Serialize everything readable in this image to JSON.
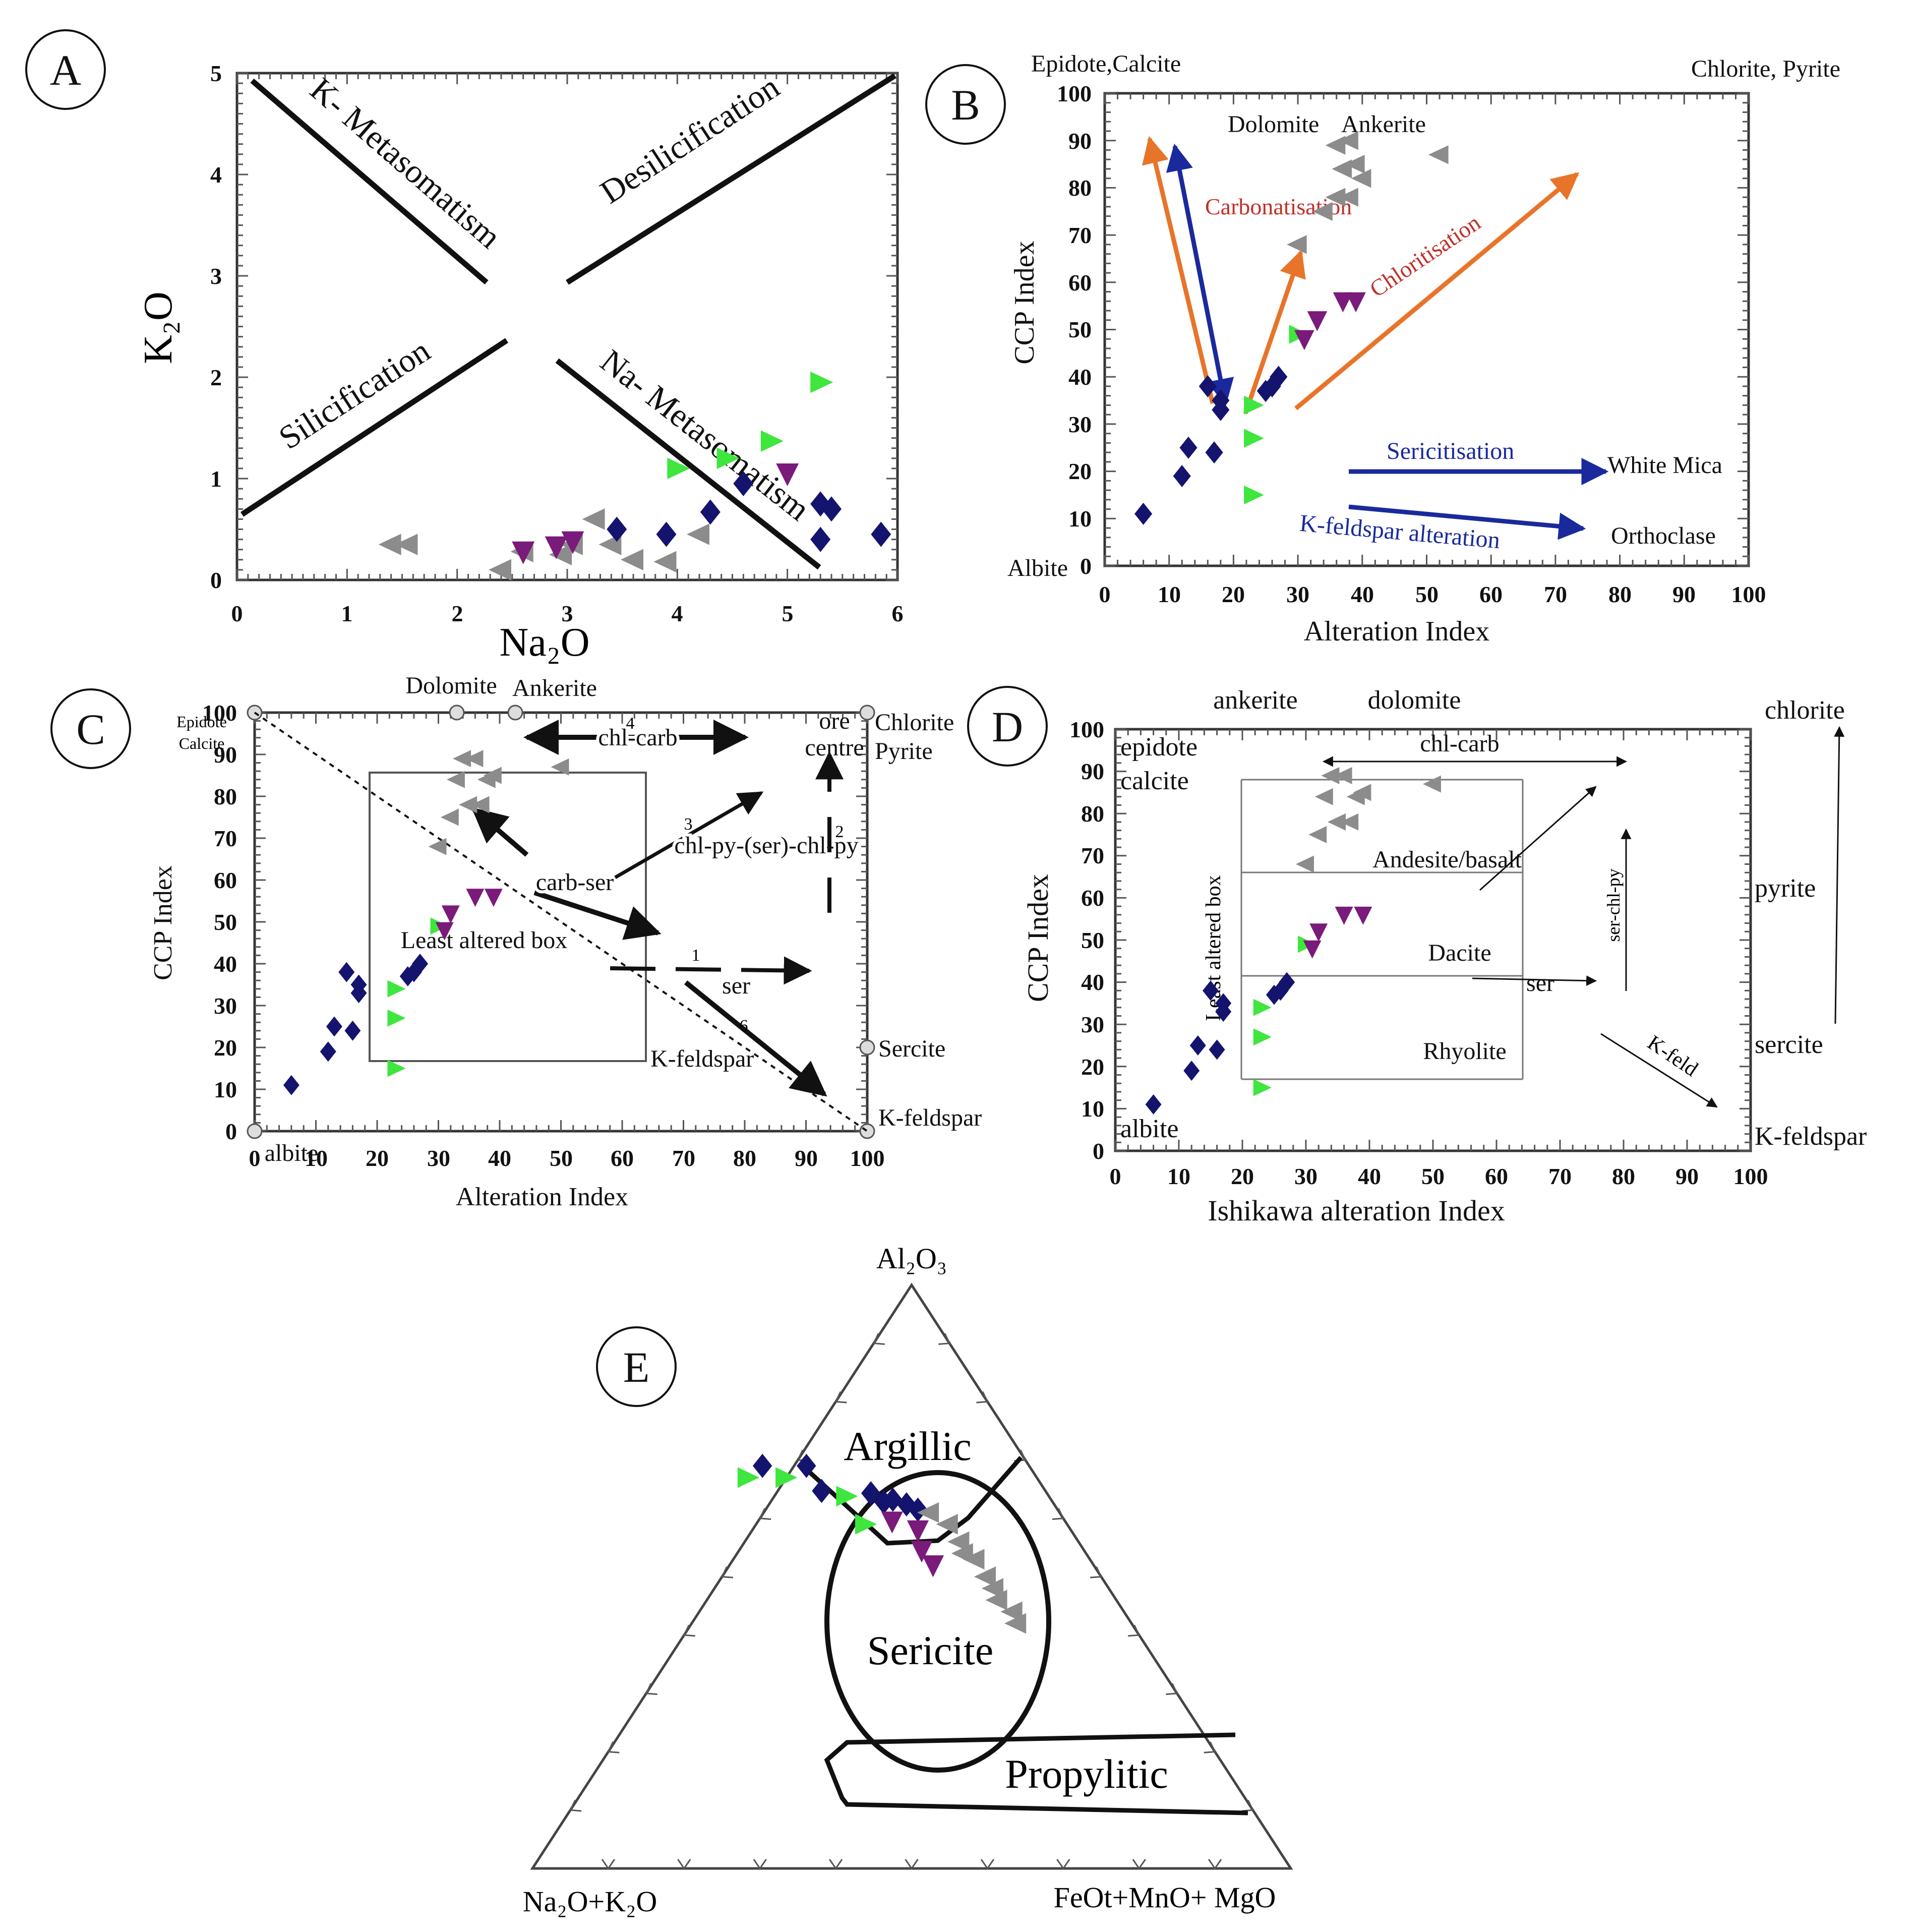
{
  "colors": {
    "gray": "#8c8c8c",
    "navy": "#14146e",
    "green": "#3ee63e",
    "purple": "#7a1a7a",
    "orange": "#e8742a",
    "blue": "#1a2a9c",
    "red": "#c0302a",
    "black": "#111111"
  },
  "panels": {
    "A": {
      "label": "A",
      "xlabel": "Na₂O",
      "ylabel": "K₂O",
      "xticks": [
        "0",
        "1",
        "2",
        "3",
        "4",
        "5",
        "6"
      ],
      "yticks": [
        "0",
        "1",
        "2",
        "3",
        "4",
        "5"
      ],
      "xlim": [
        0,
        6
      ],
      "ylim": [
        0,
        5
      ],
      "fields": [
        "K- Metasomatism",
        "Desilicification",
        "Silicification",
        "Na- Metasomatism"
      ]
    },
    "B": {
      "label": "B",
      "xlabel": "Alteration Index",
      "ylabel": "CCP Index",
      "xticks": [
        "0",
        "10",
        "20",
        "30",
        "40",
        "50",
        "60",
        "70",
        "80",
        "90",
        "100"
      ],
      "yticks": [
        "0",
        "10",
        "20",
        "30",
        "40",
        "50",
        "60",
        "70",
        "80",
        "90",
        "100"
      ],
      "corner_tl": "Epidote,Calcite",
      "corner_tr": "Chlorite, Pyrite",
      "corner_bl": "Albite",
      "dolomite": "Dolomite",
      "ankerite": "Ankerite",
      "carbonatisation": "Carbonatisation",
      "chloritisation": "Chloritisation",
      "sericitisation": "Sericitisation",
      "white_mica": "White Mica",
      "kfeldspar_alteration": "K-feldspar alteration",
      "orthoclase": "Orthoclase"
    },
    "C": {
      "label": "C",
      "xlabel": "Alteration Index",
      "ylabel": "CCP Index",
      "xticks": [
        "0",
        "10",
        "20",
        "30",
        "40",
        "50",
        "60",
        "70",
        "80",
        "90",
        "100"
      ],
      "yticks": [
        "0",
        "10",
        "20",
        "30",
        "40",
        "50",
        "60",
        "70",
        "80",
        "90",
        "100"
      ],
      "epidote": "Epidote",
      "calcite": "Calcite",
      "dolomite": "Dolomite",
      "ankerite": "Ankerite",
      "chlorite": "Chlorite",
      "pyrite": "Pyrite",
      "ore": "ore",
      "centre": "centre",
      "chl_carb": "chl-carb",
      "carb_ser": "carb-ser",
      "chl_py_ser": "chl-py-(ser)-chl-py",
      "least_altered": "Least altered box",
      "ser": "ser",
      "kfeldspar": "K-feldspar",
      "sercite": "Sercite",
      "kfeldspar2": "K-feldspar",
      "albite": "albite",
      "n1": "1",
      "n2": "2",
      "n3": "3",
      "n4": "4",
      "n6": "6"
    },
    "D": {
      "label": "D",
      "xlabel": "Ishikawa alteration Index",
      "ylabel": "CCP Index",
      "xticks": [
        "0",
        "10",
        "20",
        "30",
        "40",
        "50",
        "60",
        "70",
        "80",
        "90",
        "100"
      ],
      "yticks": [
        "0",
        "10",
        "20",
        "30",
        "40",
        "50",
        "60",
        "70",
        "80",
        "90",
        "100"
      ],
      "ankerite": "ankerite",
      "dolomite": "dolomite",
      "epidote": "epidote",
      "calcite": "calcite",
      "chl_carb": "chl-carb",
      "andesite": "Andesite/basalt",
      "dacite": "Dacite",
      "rhyolite": "Rhyolite",
      "ser": "ser",
      "ser_chl_py": "ser-chl-py",
      "least_altered": "Least altered box",
      "kfeld": "K-feld",
      "albite": "albite",
      "chlorite": "chlorite",
      "pyrite": "pyrite",
      "sercite": "sercite",
      "kfeldspar": "K-feldspar"
    },
    "E": {
      "label": "E",
      "top": "Al₂O₃",
      "left": "Na₂O+K₂O",
      "right": "FeOt+MnO+ MgO",
      "fields": [
        "Argillic",
        "Sericite",
        "Propylitic"
      ]
    }
  },
  "chart_data": [
    {
      "panel": "A",
      "type": "scatter",
      "title": "",
      "xlabel": "Na₂O",
      "ylabel": "K₂O",
      "xlim": [
        0,
        6
      ],
      "ylim": [
        0,
        5
      ],
      "series": [
        {
          "name": "gray",
          "marker": "triangle-left",
          "points": [
            [
              1.4,
              0.35
            ],
            [
              1.55,
              0.35
            ],
            [
              2.4,
              0.1
            ],
            [
              2.6,
              0.28
            ],
            [
              2.95,
              0.25
            ],
            [
              3.05,
              0.35
            ],
            [
              3.25,
              0.6
            ],
            [
              3.4,
              0.35
            ],
            [
              3.6,
              0.2
            ],
            [
              3.9,
              0.18
            ],
            [
              4.2,
              0.45
            ]
          ]
        },
        {
          "name": "purple",
          "marker": "triangle-down",
          "points": [
            [
              2.6,
              0.28
            ],
            [
              2.9,
              0.33
            ],
            [
              3.05,
              0.38
            ],
            [
              5.0,
              1.05
            ]
          ]
        },
        {
          "name": "navy",
          "marker": "diamond",
          "points": [
            [
              3.45,
              0.5
            ],
            [
              3.9,
              0.45
            ],
            [
              4.3,
              0.67
            ],
            [
              4.6,
              0.95
            ],
            [
              5.3,
              0.4
            ],
            [
              5.3,
              0.75
            ],
            [
              5.4,
              0.7
            ],
            [
              5.85,
              0.45
            ]
          ]
        },
        {
          "name": "green",
          "marker": "triangle-right",
          "points": [
            [
              4.0,
              1.1
            ],
            [
              4.45,
              1.2
            ],
            [
              4.85,
              1.37
            ],
            [
              5.3,
              1.95
            ]
          ]
        }
      ]
    },
    {
      "panel": "B",
      "type": "scatter",
      "title": "",
      "xlabel": "Alteration Index",
      "ylabel": "CCP Index",
      "xlim": [
        0,
        100
      ],
      "ylim": [
        0,
        100
      ],
      "series": [
        {
          "name": "navy",
          "marker": "diamond",
          "points": [
            [
              6,
              11
            ],
            [
              12,
              19
            ],
            [
              13,
              25
            ],
            [
              16,
              38
            ],
            [
              17,
              24
            ],
            [
              18,
              33
            ],
            [
              18,
              35
            ],
            [
              25,
              37
            ],
            [
              26,
              38
            ],
            [
              27,
              40
            ]
          ]
        },
        {
          "name": "green",
          "marker": "triangle-right",
          "points": [
            [
              23,
              15
            ],
            [
              23,
              27
            ],
            [
              23,
              34
            ],
            [
              30,
              49
            ]
          ]
        },
        {
          "name": "purple",
          "marker": "triangle-down",
          "points": [
            [
              31,
              48
            ],
            [
              33,
              52
            ],
            [
              37,
              56
            ],
            [
              39,
              56
            ]
          ]
        },
        {
          "name": "gray",
          "marker": "triangle-left",
          "points": [
            [
              30,
              68
            ],
            [
              34,
              75
            ],
            [
              36,
              78
            ],
            [
              38,
              78
            ],
            [
              37,
              84
            ],
            [
              40,
              82
            ],
            [
              39,
              85
            ],
            [
              36,
              89
            ],
            [
              38,
              90
            ],
            [
              52,
              87
            ]
          ]
        }
      ]
    },
    {
      "panel": "C",
      "type": "scatter",
      "title": "",
      "xlabel": "Alteration Index",
      "ylabel": "CCP Index",
      "xlim": [
        0,
        100
      ],
      "ylim": [
        0,
        100
      ],
      "series": [
        {
          "name": "navy",
          "marker": "diamond",
          "points": [
            [
              6,
              11
            ],
            [
              12,
              19
            ],
            [
              13,
              25
            ],
            [
              15,
              38
            ],
            [
              16,
              24
            ],
            [
              17,
              33
            ],
            [
              17,
              35
            ],
            [
              25,
              37
            ],
            [
              26,
              38
            ],
            [
              27,
              40
            ]
          ]
        },
        {
          "name": "green",
          "marker": "triangle-right",
          "points": [
            [
              23,
              15
            ],
            [
              23,
              27
            ],
            [
              23,
              34
            ],
            [
              30,
              49
            ]
          ]
        },
        {
          "name": "purple",
          "marker": "triangle-down",
          "points": [
            [
              31,
              48
            ],
            [
              32,
              52
            ],
            [
              36,
              56
            ],
            [
              39,
              56
            ]
          ]
        },
        {
          "name": "gray",
          "marker": "triangle-left",
          "points": [
            [
              30,
              68
            ],
            [
              32,
              75
            ],
            [
              35,
              78
            ],
            [
              37,
              78
            ],
            [
              33,
              84
            ],
            [
              38,
              84
            ],
            [
              39,
              85
            ],
            [
              34,
              89
            ],
            [
              36,
              89
            ],
            [
              50,
              87
            ]
          ]
        }
      ]
    },
    {
      "panel": "D",
      "type": "scatter",
      "title": "",
      "xlabel": "Ishikawa alteration Index",
      "ylabel": "CCP Index",
      "xlim": [
        0,
        100
      ],
      "ylim": [
        0,
        100
      ],
      "series": [
        {
          "name": "navy",
          "marker": "diamond",
          "points": [
            [
              6,
              11
            ],
            [
              12,
              19
            ],
            [
              13,
              25
            ],
            [
              15,
              38
            ],
            [
              16,
              24
            ],
            [
              17,
              33
            ],
            [
              17,
              35
            ],
            [
              25,
              37
            ],
            [
              26,
              38
            ],
            [
              27,
              40
            ]
          ]
        },
        {
          "name": "green",
          "marker": "triangle-right",
          "points": [
            [
              23,
              15
            ],
            [
              23,
              27
            ],
            [
              23,
              34
            ],
            [
              30,
              49
            ]
          ]
        },
        {
          "name": "purple",
          "marker": "triangle-down",
          "points": [
            [
              31,
              48
            ],
            [
              32,
              52
            ],
            [
              36,
              56
            ],
            [
              39,
              56
            ]
          ]
        },
        {
          "name": "gray",
          "marker": "triangle-left",
          "points": [
            [
              30,
              68
            ],
            [
              32,
              75
            ],
            [
              35,
              78
            ],
            [
              37,
              78
            ],
            [
              33,
              84
            ],
            [
              38,
              84
            ],
            [
              39,
              85
            ],
            [
              34,
              89
            ],
            [
              36,
              89
            ],
            [
              50,
              87
            ]
          ]
        }
      ]
    },
    {
      "panel": "E",
      "type": "scatter",
      "title": "",
      "axes": [
        "Al₂O₃",
        "Na₂O+K₂O",
        "FeOt+MnO+ MgO"
      ],
      "series": [
        {
          "name": "navy",
          "marker": "diamond",
          "points": [
            [
              0.655,
              0.31
            ],
            [
              0.713,
              0.31
            ],
            [
              0.733,
              0.353
            ],
            [
              0.798,
              0.357
            ],
            [
              0.815,
              0.372
            ],
            [
              0.827,
              0.368
            ],
            [
              0.845,
              0.376
            ],
            [
              0.86,
              0.385
            ]
          ]
        },
        {
          "name": "green",
          "marker": "triangle-right",
          "points": [
            [
              0.635,
              0.33
            ],
            [
              0.685,
              0.33
            ],
            [
              0.765,
              0.362
            ],
            [
              0.79,
              0.41
            ]
          ]
        },
        {
          "name": "purple",
          "marker": "triangle-down",
          "points": [
            [
              0.826,
              0.405
            ],
            [
              0.86,
              0.42
            ],
            [
              0.865,
              0.455
            ],
            [
              0.88,
              0.48
            ]
          ]
        },
        {
          "name": "gray",
          "marker": "triangle-left",
          "points": [
            [
              0.875,
              0.39
            ],
            [
              0.9,
              0.41
            ],
            [
              0.915,
              0.44
            ],
            [
              0.92,
              0.46
            ],
            [
              0.935,
              0.47
            ],
            [
              0.95,
              0.5
            ],
            [
              0.96,
              0.52
            ],
            [
              0.965,
              0.54
            ],
            [
              0.985,
              0.56
            ],
            [
              0.99,
              0.58
            ]
          ]
        }
      ]
    }
  ]
}
